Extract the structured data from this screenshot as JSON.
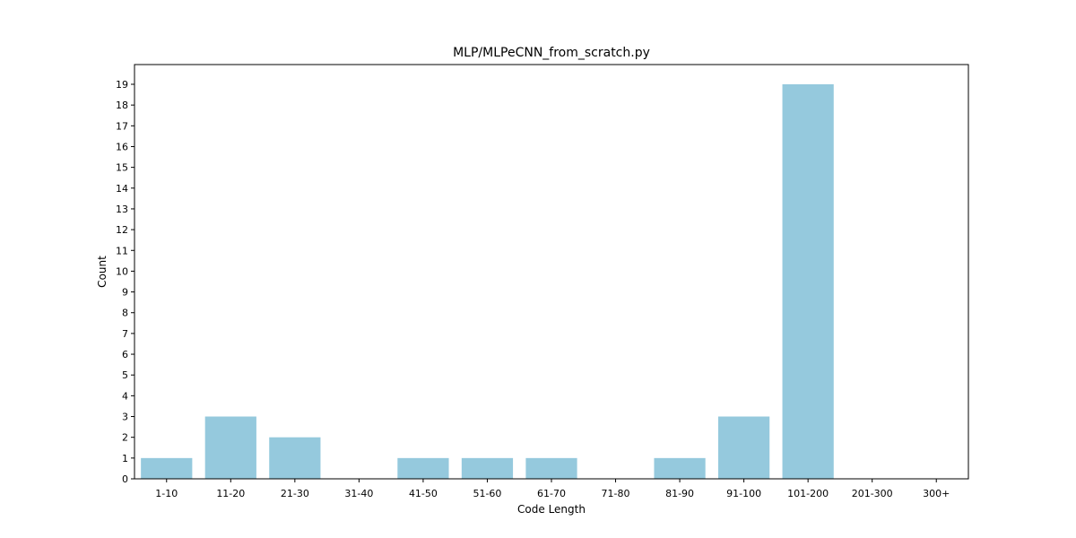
{
  "chart_data": {
    "type": "bar",
    "title": "MLP/MLPeCNN_from_scratch.py",
    "xlabel": "Code Length",
    "ylabel": "Count",
    "categories": [
      "1-10",
      "11-20",
      "21-30",
      "31-40",
      "41-50",
      "51-60",
      "61-70",
      "71-80",
      "81-90",
      "91-100",
      "101-200",
      "201-300",
      "300+"
    ],
    "values": [
      1,
      3,
      2,
      0,
      1,
      1,
      1,
      0,
      1,
      3,
      19,
      0,
      0
    ],
    "ylim": [
      0,
      19.95
    ],
    "yticks": [
      0,
      1,
      2,
      3,
      4,
      5,
      6,
      7,
      8,
      9,
      10,
      11,
      12,
      13,
      14,
      15,
      16,
      17,
      18,
      19
    ],
    "grid": false,
    "bar_color": "#95c9dd"
  }
}
